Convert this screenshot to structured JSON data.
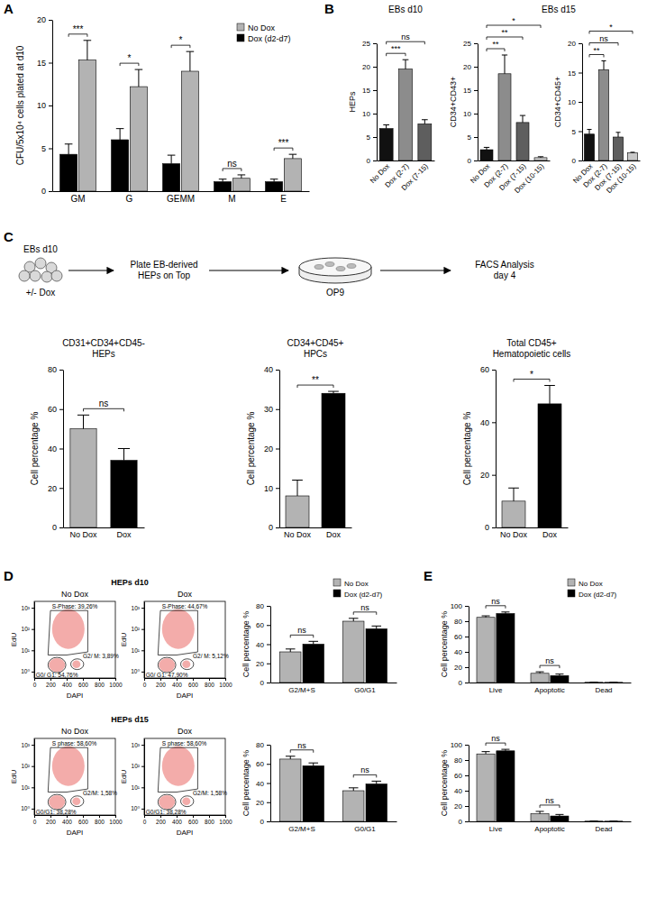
{
  "panel_labels": [
    "A",
    "B",
    "C",
    "D",
    "E"
  ],
  "diagram": {
    "steps": [
      {
        "lines": [
          "EBs d10"
        ],
        "note": "+/- Dox"
      },
      {
        "lines": [
          "Plate EB-derived",
          "HEPs on Top"
        ]
      },
      {
        "lines": [
          "OP9"
        ]
      },
      {
        "lines": [
          "FACS Analysis",
          "day 4"
        ]
      }
    ]
  },
  "chart_data": [
    {
      "type": "bar",
      "ylabel": "CFU/5x10⁴ cells plated at d10",
      "categories": [
        "GM",
        "G",
        "GEMM",
        "M",
        "E"
      ],
      "series": [
        {
          "name": "No Dox",
          "color": "#b3b3b3",
          "values": [
            15.3,
            12.2,
            14.0,
            1.5,
            3.8
          ],
          "errors": [
            2.3,
            2.0,
            2.3,
            0.4,
            0.5
          ]
        },
        {
          "name": "Dox (d2-d7)",
          "color": "#000000",
          "values": [
            4.3,
            6.0,
            3.2,
            1.1,
            1.1
          ],
          "errors": [
            1.2,
            1.3,
            1.0,
            0.3,
            0.3
          ]
        }
      ],
      "ylim": [
        0,
        20
      ],
      "yticks": [
        0,
        5,
        10,
        15,
        20
      ],
      "legend": "top-right",
      "annotations": [
        {
          "text": "***",
          "category": "GM"
        },
        {
          "text": "*",
          "category": "G"
        },
        {
          "text": "*",
          "category": "GEMM"
        },
        {
          "text": "ns",
          "category": "M"
        },
        {
          "text": "***",
          "category": "E"
        }
      ]
    },
    {
      "type": "bar",
      "subtitle": "EBs d10",
      "ylabel": "HEPs",
      "categories": [
        "No Dox",
        "Dox (2-7)",
        "Dox (7-15)"
      ],
      "values": [
        6.8,
        19.5,
        7.8
      ],
      "errors": [
        0.8,
        2.0,
        0.9
      ],
      "colors": [
        "#111111",
        "#8c8c8c",
        "#5e5e5e"
      ],
      "ylim": [
        0,
        25
      ],
      "yticks": [
        0,
        5,
        10,
        15,
        20,
        25
      ],
      "annotations": [
        {
          "text": "***",
          "from": "No Dox",
          "to": "Dox (2-7)"
        },
        {
          "text": "ns",
          "from": "No Dox",
          "to": "Dox (7-15)"
        }
      ]
    },
    {
      "type": "bar",
      "subtitle": "EBs d15",
      "ylabel": "CD34+CD43+",
      "categories": [
        "No Dox",
        "Dox (2-7)",
        "Dox (7-15)",
        "Dox (10-15)"
      ],
      "values": [
        2.3,
        18.5,
        8.1,
        0.6
      ],
      "errors": [
        0.5,
        4.0,
        1.5,
        0.2
      ],
      "colors": [
        "#111111",
        "#8c8c8c",
        "#5e5e5e",
        "#c8c8c8"
      ],
      "ylim": [
        0,
        25
      ],
      "yticks": [
        0,
        5,
        10,
        15,
        20,
        25
      ],
      "annotations": [
        {
          "text": "**",
          "from": "No Dox",
          "to": "Dox (2-7)"
        },
        {
          "text": "**",
          "from": "No Dox",
          "to": "Dox (7-15)"
        },
        {
          "text": "*",
          "from": "No Dox",
          "to": "Dox (10-15)"
        }
      ]
    },
    {
      "type": "bar",
      "ylabel": "CD34+CD45+",
      "categories": [
        "No Dox",
        "Dox (2-7)",
        "Dox (7-15)",
        "Dox (10-15)"
      ],
      "values": [
        4.5,
        15.5,
        4.0,
        1.3
      ],
      "errors": [
        0.8,
        1.5,
        0.8,
        0.1
      ],
      "colors": [
        "#111111",
        "#8c8c8c",
        "#5e5e5e",
        "#c8c8c8"
      ],
      "ylim": [
        0,
        20
      ],
      "yticks": [
        0,
        5,
        10,
        15,
        20
      ],
      "annotations": [
        {
          "text": "**",
          "from": "No Dox",
          "to": "Dox (2-7)"
        },
        {
          "text": "ns",
          "from": "No Dox",
          "to": "Dox (7-15)"
        },
        {
          "text": "*",
          "from": "No Dox",
          "to": "Dox (10-15)"
        }
      ]
    },
    {
      "type": "bar",
      "title": [
        "CD31+CD34+CD45-",
        "HEPs"
      ],
      "ylabel": "Cell percentage %",
      "categories": [
        "No Dox",
        "Dox"
      ],
      "values": [
        50,
        34
      ],
      "errors": [
        7,
        6
      ],
      "colors": [
        "#b3b3b3",
        "#000000"
      ],
      "ylim": [
        0,
        80
      ],
      "yticks": [
        0,
        20,
        40,
        60,
        80
      ],
      "annotations": [
        {
          "text": "ns",
          "from": "No Dox",
          "to": "Dox"
        }
      ]
    },
    {
      "type": "bar",
      "title": [
        "CD34+CD45+",
        "HPCs"
      ],
      "ylabel": "Cell percentage %",
      "categories": [
        "No Dox",
        "Dox"
      ],
      "values": [
        8,
        34
      ],
      "errors": [
        4,
        0.5
      ],
      "colors": [
        "#b3b3b3",
        "#000000"
      ],
      "ylim": [
        0,
        40
      ],
      "yticks": [
        0,
        10,
        20,
        30,
        40
      ],
      "annotations": [
        {
          "text": "**",
          "from": "No Dox",
          "to": "Dox"
        }
      ]
    },
    {
      "type": "bar",
      "title": [
        "Total CD45+",
        "Hematopoietic cells"
      ],
      "ylabel": "Cell percentage %",
      "categories": [
        "No Dox",
        "Dox"
      ],
      "values": [
        10,
        47
      ],
      "errors": [
        5,
        7
      ],
      "colors": [
        "#b3b3b3",
        "#000000"
      ],
      "ylim": [
        0,
        60
      ],
      "yticks": [
        0,
        20,
        40,
        60
      ],
      "annotations": [
        {
          "text": "*",
          "from": "No Dox",
          "to": "Dox"
        }
      ]
    },
    {
      "type": "flow_cytometry",
      "subtitle": "HEPs d10",
      "title": "No Dox",
      "xlabel": "DAPI",
      "ylabel": "EdU",
      "xlim": [
        0,
        1000
      ],
      "xticks": [
        0,
        200,
        400,
        600,
        800,
        1000
      ],
      "log": "y",
      "ylim": [
        0.5,
        2000
      ],
      "yticks": [
        {
          "value": 1,
          "label": "10⁰"
        },
        {
          "value": 10,
          "label": "10¹"
        },
        {
          "value": 100,
          "label": "10²"
        },
        {
          "value": 1000,
          "label": "10³"
        }
      ],
      "annotations": [
        "S-Phase: 39,26%",
        "G0/ G1: 54,76%",
        "G2/ M: 3,89%"
      ]
    },
    {
      "type": "flow_cytometry",
      "title": "Dox",
      "xlabel": "DAPI",
      "ylabel": "EdU",
      "xlim": [
        0,
        1000
      ],
      "xticks": [
        0,
        200,
        400,
        600,
        800,
        1000
      ],
      "log": "y",
      "ylim": [
        0.5,
        2000
      ],
      "yticks": [
        {
          "value": 1,
          "label": "10⁰"
        },
        {
          "value": 10,
          "label": "10¹"
        },
        {
          "value": 100,
          "label": "10²"
        },
        {
          "value": 1000,
          "label": "10³"
        }
      ],
      "annotations": [
        "S-Phase: 44,67%",
        "G0/ G1: 47,90%",
        "G2/ M: 5,12%"
      ]
    },
    {
      "type": "flow_cytometry",
      "subtitle": "HEPs d15",
      "title": "No Dox",
      "xlabel": "DAPI",
      "ylabel": "EdU",
      "xlim": [
        0,
        1000
      ],
      "xticks": [
        0,
        200,
        400,
        600,
        800,
        1000
      ],
      "log": "y",
      "ylim": [
        0.5,
        2000
      ],
      "yticks": [
        {
          "value": 1,
          "label": "10⁰"
        },
        {
          "value": 10,
          "label": "10¹"
        },
        {
          "value": 100,
          "label": "10²"
        },
        {
          "value": 1000,
          "label": "10³"
        }
      ],
      "annotations": [
        "S phase: 58,60%",
        "G0/G1: 38,28%",
        "G2/M: 1,58%"
      ]
    },
    {
      "type": "flow_cytometry",
      "title": "Dox",
      "xlabel": "DAPI",
      "ylabel": "EdU",
      "xlim": [
        0,
        1000
      ],
      "xticks": [
        0,
        200,
        400,
        600,
        800,
        1000
      ],
      "log": "y",
      "ylim": [
        0.5,
        2000
      ],
      "yticks": [
        {
          "value": 1,
          "label": "10⁰"
        },
        {
          "value": 10,
          "label": "10¹"
        },
        {
          "value": 100,
          "label": "10²"
        },
        {
          "value": 1000,
          "label": "10³"
        }
      ],
      "annotations": [
        "S phase: 58,60%",
        "G0/G1: 38,28%",
        "G2/M: 1,58%"
      ]
    },
    {
      "type": "bar",
      "ylabel": "Cell percentage %",
      "categories": [
        "G2/M+S",
        "G0/G1"
      ],
      "series": [
        {
          "name": "No Dox",
          "color": "#b3b3b3",
          "values": [
            32,
            64
          ],
          "errors": [
            3,
            3
          ]
        },
        {
          "name": "Dox (d2-d7)",
          "color": "#000000",
          "values": [
            40,
            56
          ],
          "errors": [
            3,
            3
          ]
        }
      ],
      "ylim": [
        0,
        80
      ],
      "yticks": [
        0,
        20,
        40,
        60,
        80
      ],
      "legend": "top",
      "annotations": [
        {
          "text": "ns",
          "category": "G2/M+S"
        },
        {
          "text": "ns",
          "category": "G0/G1"
        }
      ]
    },
    {
      "type": "bar",
      "ylabel": "Cell percentage %",
      "categories": [
        "G2/M+S",
        "G0/G1"
      ],
      "series": [
        {
          "color": "#b3b3b3",
          "values": [
            65,
            32
          ],
          "errors": [
            3,
            3
          ]
        },
        {
          "color": "#000000",
          "values": [
            58,
            39
          ],
          "errors": [
            3,
            3
          ]
        }
      ],
      "ylim": [
        0,
        80
      ],
      "yticks": [
        0,
        20,
        40,
        60,
        80
      ],
      "annotations": [
        {
          "text": "ns",
          "category": "G2/M+S"
        },
        {
          "text": "ns",
          "category": "G0/G1"
        }
      ]
    },
    {
      "type": "bar",
      "ylabel": "Cell percentage %",
      "categories": [
        "Live",
        "Apoptotic",
        "Dead"
      ],
      "series": [
        {
          "name": "No Dox",
          "color": "#b3b3b3",
          "values": [
            85,
            12,
            0.3
          ],
          "errors": [
            2,
            2,
            0.1
          ]
        },
        {
          "name": "Dox (d2-d7)",
          "color": "#000000",
          "values": [
            90,
            9,
            0.2
          ],
          "errors": [
            2,
            2,
            0.1
          ]
        }
      ],
      "ylim": [
        0,
        100
      ],
      "yticks": [
        0,
        20,
        40,
        60,
        80,
        100
      ],
      "legend": "top",
      "annotations": [
        {
          "text": "ns",
          "category": "Live"
        },
        {
          "text": "ns",
          "category": "Apoptotic"
        }
      ]
    },
    {
      "type": "bar",
      "ylabel": "Cell percentage %",
      "categories": [
        "Live",
        "Apoptotic",
        "Dead"
      ],
      "series": [
        {
          "color": "#b3b3b3",
          "values": [
            88,
            10,
            0.3
          ],
          "errors": [
            3,
            3,
            0.1
          ]
        },
        {
          "color": "#000000",
          "values": [
            92,
            7,
            0.2
          ],
          "errors": [
            2,
            2,
            0.1
          ]
        }
      ],
      "ylim": [
        0,
        100
      ],
      "yticks": [
        0,
        20,
        40,
        60,
        80,
        100
      ],
      "annotations": [
        {
          "text": "ns",
          "category": "Live"
        },
        {
          "text": "ns",
          "category": "Apoptotic"
        }
      ]
    }
  ]
}
